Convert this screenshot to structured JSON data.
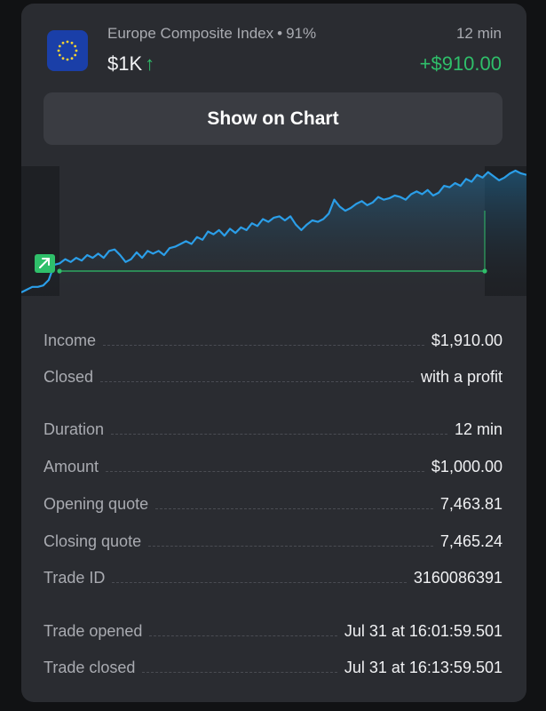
{
  "trade": {
    "asset_name": "Europe Composite Index",
    "separator": "•",
    "payout": "91%",
    "amount": "$1K",
    "direction_arrow": "↑",
    "duration": "12 min",
    "profit": "+$910.00",
    "flag_icon": "eu-flag-icon"
  },
  "button": {
    "show_on_chart": "Show on Chart"
  },
  "chart": {
    "line_color": "#2b9ee8",
    "entry_line_color": "#2fbf6a",
    "direction_marker": "arrow-up-right-icon",
    "values": [
      44,
      46,
      48,
      48,
      49,
      53,
      64,
      65,
      68,
      66,
      69,
      67,
      71,
      69,
      72,
      69,
      74,
      75,
      71,
      66,
      68,
      73,
      69,
      74,
      72,
      74,
      71,
      76,
      77,
      79,
      81,
      79,
      84,
      82,
      88,
      86,
      89,
      85,
      90,
      87,
      91,
      89,
      94,
      92,
      97,
      95,
      98,
      99,
      96,
      99,
      93,
      89,
      93,
      96,
      95,
      97,
      101,
      111,
      106,
      103,
      105,
      108,
      110,
      107,
      109,
      113,
      111,
      112,
      114,
      113,
      111,
      115,
      117,
      115,
      118,
      114,
      116,
      121,
      120,
      123,
      121,
      126,
      124,
      129,
      127,
      131,
      128,
      125,
      127,
      130,
      132,
      130,
      129
    ]
  },
  "details": {
    "income": {
      "label": "Income",
      "value": "$1,910.00"
    },
    "closed": {
      "label": "Closed",
      "value": "with a profit"
    },
    "duration": {
      "label": "Duration",
      "value": "12 min"
    },
    "amount": {
      "label": "Amount",
      "value": "$1,000.00"
    },
    "opening_quote": {
      "label": "Opening quote",
      "value": "7,463.81"
    },
    "closing_quote": {
      "label": "Closing quote",
      "value": "7,465.24"
    },
    "trade_id": {
      "label": "Trade ID",
      "value": "3160086391"
    },
    "trade_opened": {
      "label": "Trade opened",
      "value": "Jul 31 at 16:01:59.501"
    },
    "trade_closed": {
      "label": "Trade closed",
      "value": "Jul 31 at 16:13:59.501"
    }
  }
}
